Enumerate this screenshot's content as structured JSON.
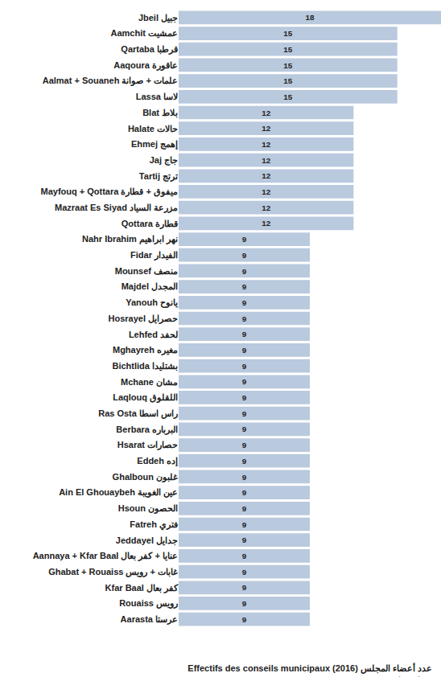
{
  "chart_data": {
    "type": "bar",
    "orientation": "horizontal",
    "title": "Effectifs des conseils municipaux (2016) عدد أعضاء المجلس",
    "subtitle": "Caza de Jbeil-قضاء جبيل",
    "categories": [
      "Jbeil جبيل",
      "Aamchit عمشيت",
      "Qartaba قرطبا",
      "Aaqoura عاقورة",
      "Aalmat + Souaneh علمات + صوانة",
      "Lassa لاسا",
      "Blat بلاط",
      "Halate حالات",
      "Ehmej إهمج",
      "Jaj جاج",
      "Tartij ترتج",
      "Mayfouq + Qottara ميفوق + قطارة",
      "Mazraat Es Siyad مزرعة السياد",
      "Qottara قطارة",
      "Nahr Ibrahim نهر ابراهيم",
      "Fidar الفيدار",
      "Mounsef منصف",
      "Majdel المجدل",
      "Yanouh يانوح",
      "Hosrayel حصرايل",
      "Lehfed لحفد",
      "Mghayreh مغيره",
      "Bichtlida بشتليدا",
      "Mchane مشان",
      "Laqlouq اللقلوق",
      "Ras Osta راس اسطا",
      "Berbara البرباره",
      "Hsarat حصارات",
      "Eddeh إده",
      "Ghalboun غلبون",
      "Ain El Ghouaybeh عين الغويبة",
      "Hsoun الحصون",
      "Fatreh فتري",
      "Jeddayel جدايل",
      "Aannaya + Kfar Baal عنايا + كفر بعال",
      "Ghabat + Rouaiss غابات + رويس",
      "Kfar Baal كفر بعال",
      "Rouaiss رويس",
      "Aarasta عرستا"
    ],
    "values": [
      18,
      15,
      15,
      15,
      15,
      15,
      12,
      12,
      12,
      12,
      12,
      12,
      12,
      12,
      9,
      9,
      9,
      9,
      9,
      9,
      9,
      9,
      9,
      9,
      9,
      9,
      9,
      9,
      9,
      9,
      9,
      9,
      9,
      9,
      9,
      9,
      9,
      9,
      9
    ],
    "color": "#b9c9de",
    "xlim": [
      0,
      18
    ],
    "data_labels": true,
    "tick_labels": "y",
    "grid": false
  }
}
